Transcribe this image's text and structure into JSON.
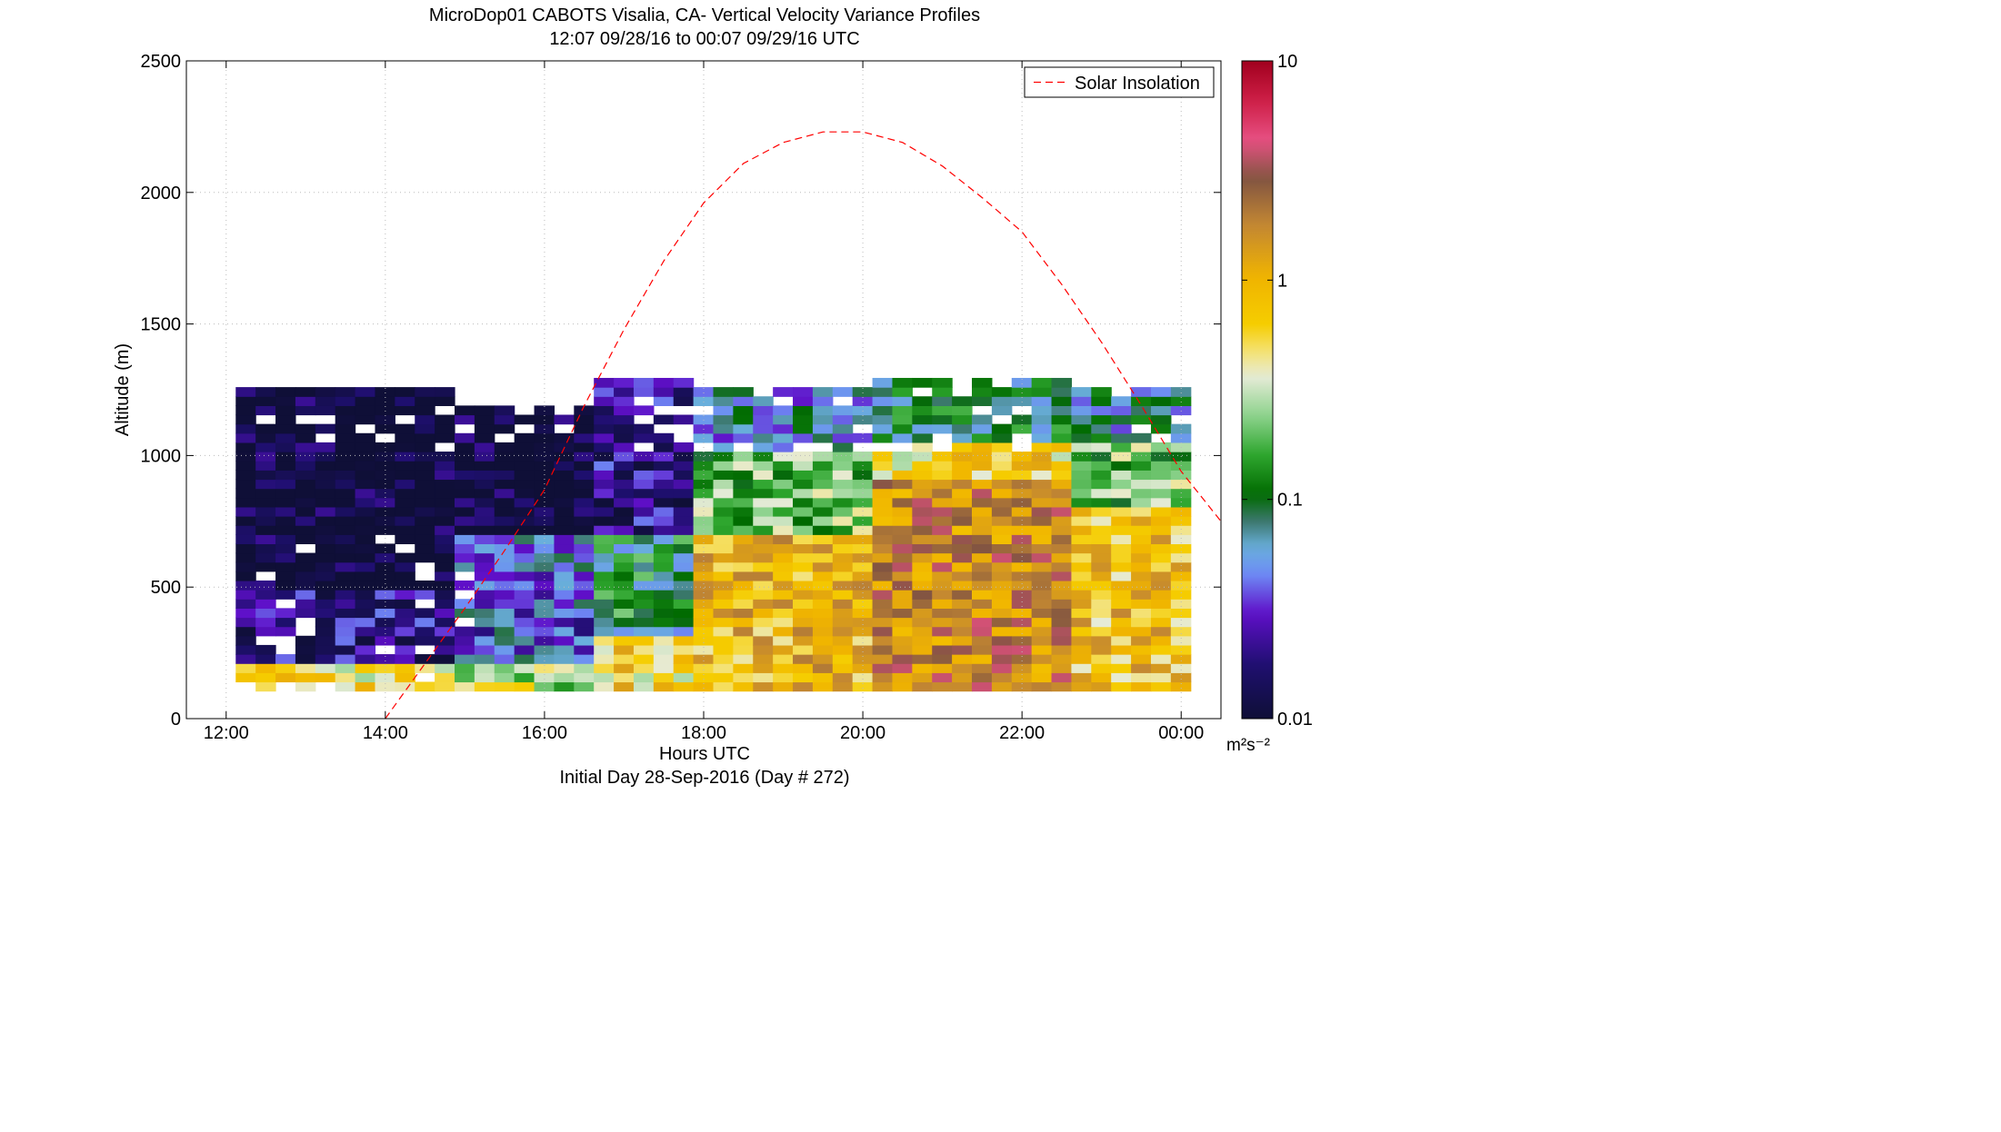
{
  "title_line1": "MicroDop01 CABOTS Visalia, CA- Vertical Velocity Variance Profiles",
  "title_line2": "12:07 09/28/16 to 00:07 09/29/16  UTC",
  "xlabel": "Hours UTC",
  "footer": "Initial Day 28-Sep-2016 (Day # 272)",
  "colorbar_unit": "m²s⁻²",
  "colors": {
    "background": "#ffffff",
    "solar_line": "#ff0000",
    "no_data": "#ffffff"
  },
  "chart_data": {
    "type": "heatmap",
    "title": "MicroDop01 CABOTS Visalia, CA- Vertical Velocity Variance Profiles",
    "subtitle": "12:07 09/28/16 to 00:07 09/29/16  UTC",
    "xlabel": "Hours UTC",
    "ylabel": "Altitude (m)",
    "xlim": [
      11.5,
      24.5
    ],
    "ylim": [
      0,
      2500
    ],
    "x_ticks": [
      {
        "value": 12,
        "label": "12:00"
      },
      {
        "value": 14,
        "label": "14:00"
      },
      {
        "value": 16,
        "label": "16:00"
      },
      {
        "value": 18,
        "label": "18:00"
      },
      {
        "value": 20,
        "label": "20:00"
      },
      {
        "value": 22,
        "label": "22:00"
      },
      {
        "value": 24,
        "label": "00:00"
      }
    ],
    "y_ticks": [
      0,
      500,
      1000,
      1500,
      2000,
      2500
    ],
    "grid": true,
    "legend": {
      "position": "top-right",
      "entries": [
        "Solar Insolation"
      ]
    },
    "colorbar": {
      "scale": "log",
      "range": [
        0.01,
        10
      ],
      "tick_labels": [
        "0.01",
        "0.1",
        "1",
        "10"
      ],
      "unit": "m^2s^-2"
    },
    "heatmap_grid": {
      "x_start_hours": 12.12,
      "x_step_hours": 0.25,
      "y_start_m": 105,
      "y_step_m": 35
    },
    "variance_profiles": [
      {
        "from_hour": 12.1,
        "to_hour": 14.9,
        "levels": [
          {
            "alt_from": 105,
            "alt_to": 210,
            "variance": 0.5
          },
          {
            "alt_from": 210,
            "alt_to": 500,
            "variance": 0.02
          },
          {
            "alt_from": 500,
            "alt_to": 1100,
            "variance": 0.01
          },
          {
            "alt_from": 1100,
            "alt_to": 1250,
            "variance": 0.01
          }
        ]
      },
      {
        "from_hour": 14.9,
        "to_hour": 16.5,
        "levels": [
          {
            "alt_from": 105,
            "alt_to": 210,
            "variance": 0.3
          },
          {
            "alt_from": 210,
            "alt_to": 700,
            "variance": 0.04
          },
          {
            "alt_from": 700,
            "alt_to": 1200,
            "variance": 0.01
          }
        ]
      },
      {
        "from_hour": 16.5,
        "to_hour": 17.8,
        "levels": [
          {
            "alt_from": 105,
            "alt_to": 300,
            "variance": 0.6
          },
          {
            "alt_from": 300,
            "alt_to": 700,
            "variance": 0.1
          },
          {
            "alt_from": 700,
            "alt_to": 1300,
            "variance": 0.02
          }
        ]
      },
      {
        "from_hour": 17.8,
        "to_hour": 20.2,
        "levels": [
          {
            "alt_from": 105,
            "alt_to": 700,
            "variance": 0.9
          },
          {
            "alt_from": 700,
            "alt_to": 1000,
            "variance": 0.2
          },
          {
            "alt_from": 1000,
            "alt_to": 1250,
            "variance": 0.05
          }
        ]
      },
      {
        "from_hour": 20.2,
        "to_hour": 22.5,
        "levels": [
          {
            "alt_from": 105,
            "alt_to": 900,
            "variance": 1.8
          },
          {
            "alt_from": 900,
            "alt_to": 1050,
            "variance": 0.6
          },
          {
            "alt_from": 1050,
            "alt_to": 1300,
            "variance": 0.08
          }
        ]
      },
      {
        "from_hour": 22.5,
        "to_hour": 24.1,
        "levels": [
          {
            "alt_from": 105,
            "alt_to": 800,
            "variance": 0.8
          },
          {
            "alt_from": 800,
            "alt_to": 1050,
            "variance": 0.2
          },
          {
            "alt_from": 1050,
            "alt_to": 1250,
            "variance": 0.06
          }
        ]
      }
    ],
    "series": [
      {
        "name": "Solar Insolation",
        "style": "dashed",
        "x": [
          14.0,
          14.5,
          15.0,
          15.5,
          16.0,
          16.5,
          17.0,
          17.5,
          18.0,
          18.5,
          19.0,
          19.5,
          20.0,
          20.5,
          21.0,
          21.5,
          22.0,
          22.5,
          23.0,
          23.5,
          24.0,
          24.5
        ],
        "y": [
          0,
          210,
          420,
          640,
          870,
          1190,
          1480,
          1740,
          1960,
          2110,
          2190,
          2230,
          2230,
          2190,
          2100,
          1980,
          1850,
          1650,
          1430,
          1190,
          940,
          750
        ]
      }
    ]
  }
}
